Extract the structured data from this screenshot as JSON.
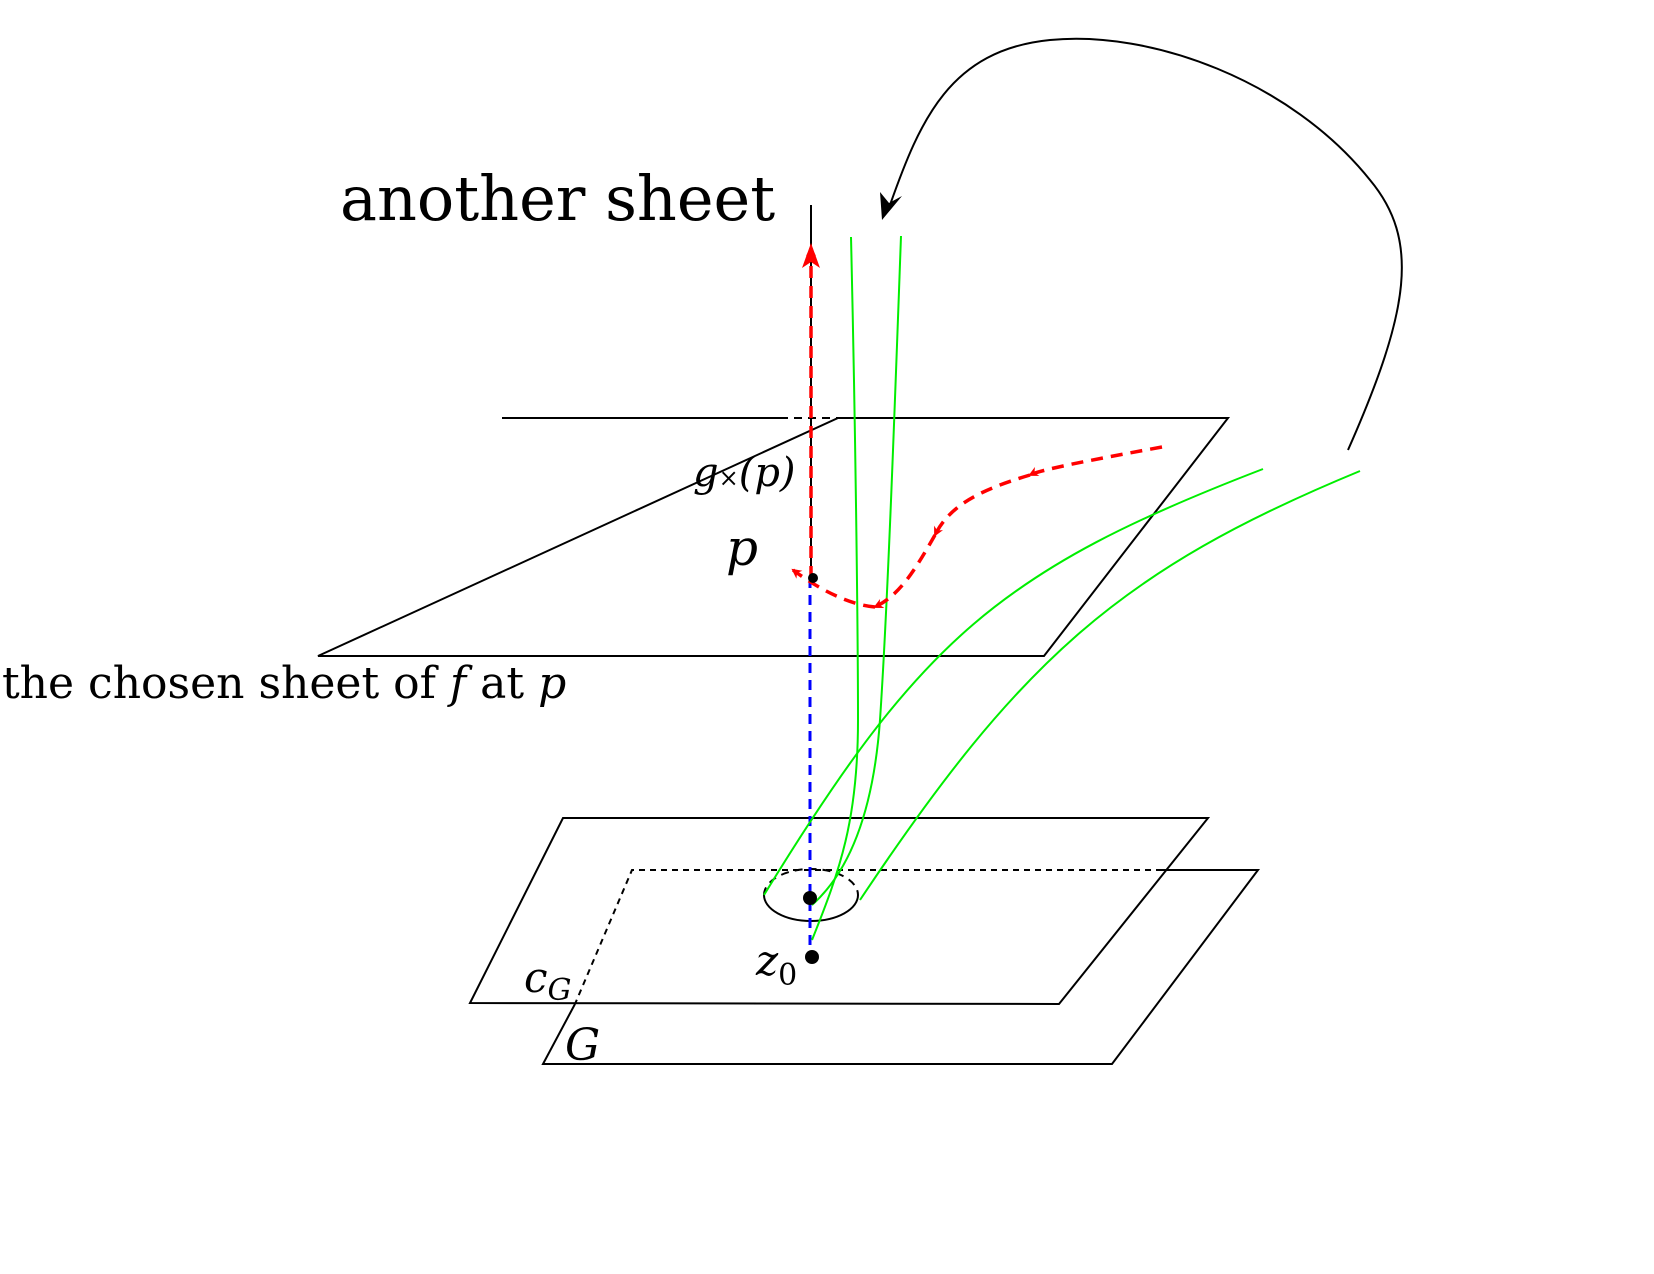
{
  "labels": {
    "another_sheet": "another sheet",
    "gx": "g",
    "gx_sub": "×",
    "gx_arg": "(p)",
    "p": "p",
    "chosen_sheet_text": "the chosen sheet of ",
    "chosen_sheet_f": "f",
    "chosen_sheet_at": " at ",
    "chosen_sheet_p": "p",
    "cG": "c",
    "cG_sub": "G",
    "G": "G",
    "z0": "z",
    "z0_sub": "0"
  },
  "colors": {
    "red_path": "#ff0000",
    "blue_projection": "#0000ff",
    "green_curves": "#00ee00",
    "outline": "#000000"
  }
}
